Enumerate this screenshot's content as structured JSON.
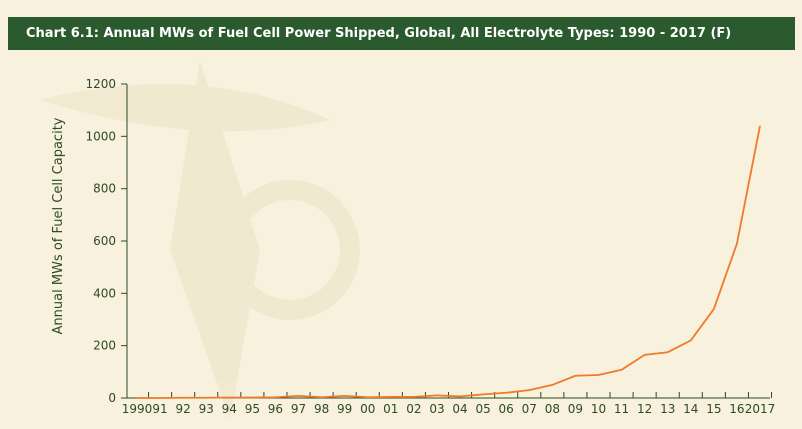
{
  "chart_data": {
    "type": "line",
    "title": "Chart 6.1: Annual MWs of Fuel Cell Power Shipped, Global, All Electrolyte Types: 1990 - 2017 (F)",
    "y_label": "Annual MWs of Fuel Cell Capacity",
    "categories": [
      "1990",
      "91",
      "92",
      "93",
      "94",
      "95",
      "96",
      "97",
      "98",
      "99",
      "00",
      "01",
      "02",
      "03",
      "04",
      "05",
      "06",
      "07",
      "08",
      "09",
      "10",
      "11",
      "12",
      "13",
      "14",
      "15",
      "16",
      "2017"
    ],
    "values": [
      0,
      0,
      1,
      1,
      2,
      2,
      3,
      8,
      3,
      8,
      3,
      4,
      4,
      10,
      6,
      14,
      20,
      30,
      50,
      85,
      88,
      108,
      165,
      175,
      220,
      340,
      590,
      1040
    ],
    "color": "#f07a2a",
    "ylim": [
      0,
      1200
    ],
    "yticks": [
      0,
      200,
      400,
      600,
      800,
      1000,
      1200
    ]
  }
}
